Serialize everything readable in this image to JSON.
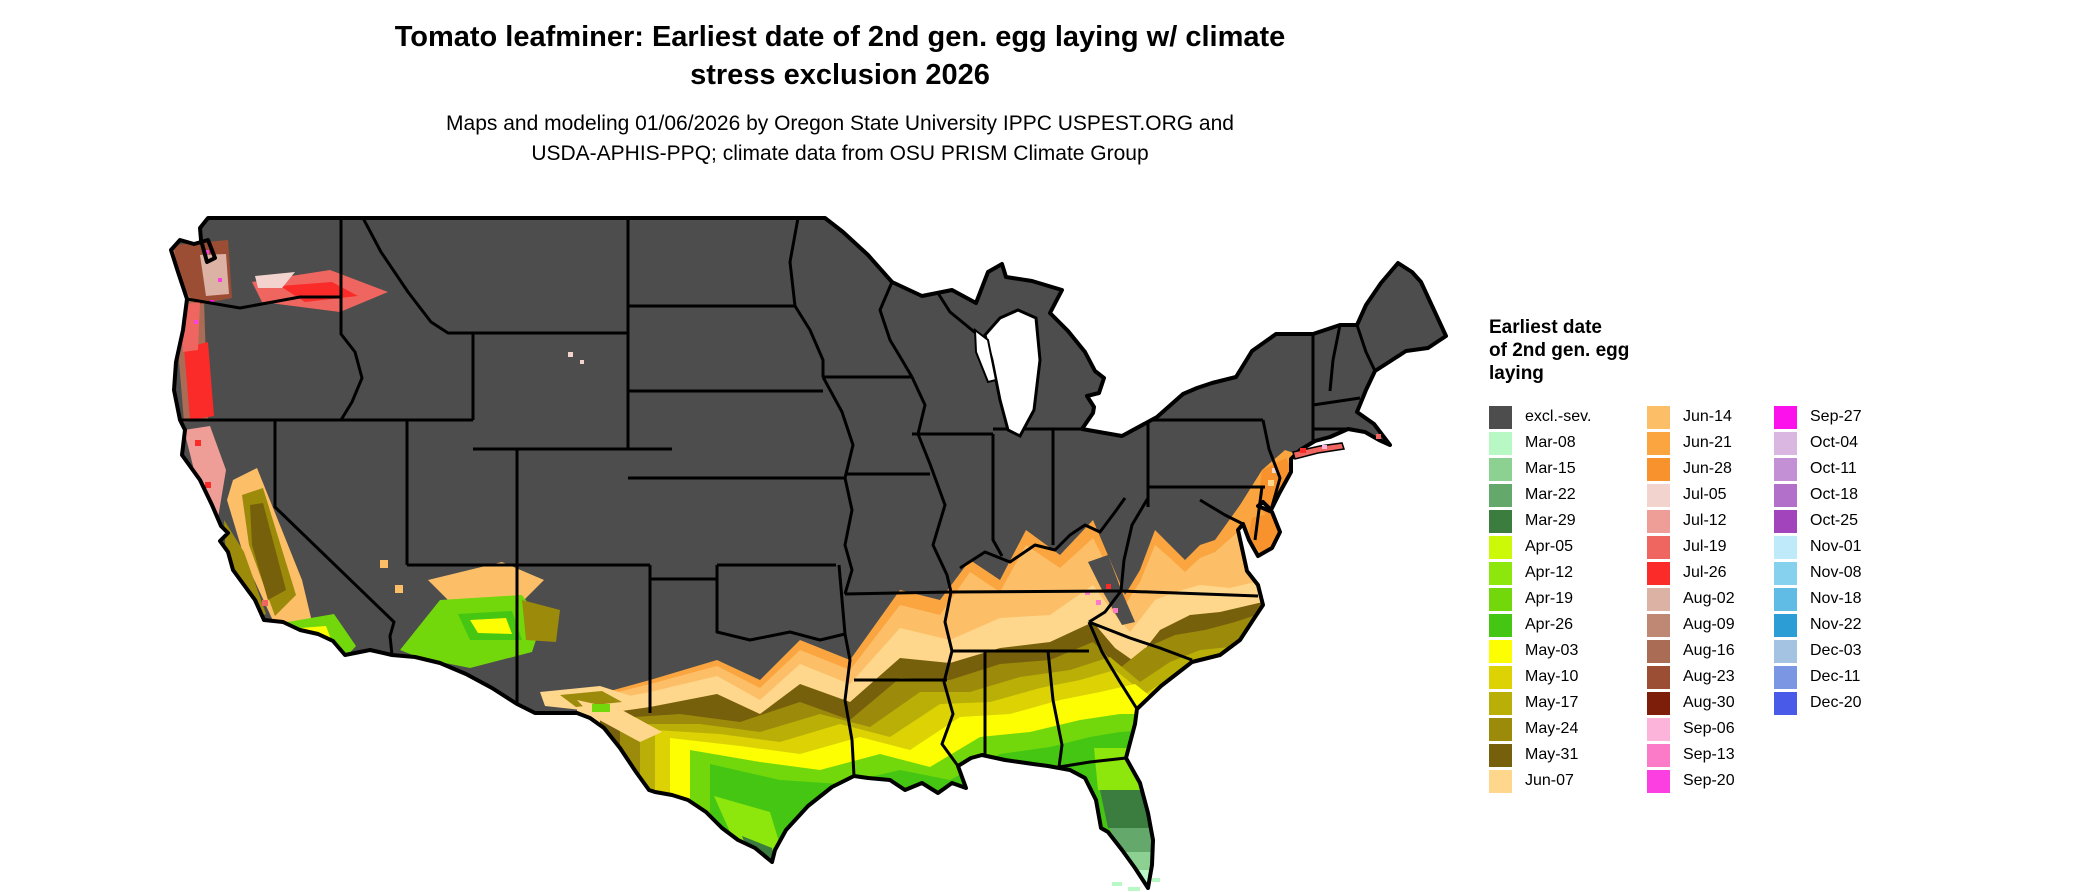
{
  "header": {
    "title_line1": "Tomato leafminer: Earliest date of 2nd gen. egg laying w/ climate",
    "title_line2": "stress exclusion 2026",
    "subtitle_line1": "Maps and modeling 01/06/2026 by Oregon State University IPPC USPEST.ORG and",
    "subtitle_line2": "USDA-APHIS-PPQ; climate data from OSU PRISM Climate Group"
  },
  "legend": {
    "title_lines": [
      "Earliest date",
      "of 2nd gen. egg",
      "laying"
    ],
    "columns": [
      [
        {
          "label": "excl.-sev.",
          "color": "#4D4D4D"
        },
        {
          "label": "Mar-08",
          "color": "#B7F8C5"
        },
        {
          "label": "Mar-15",
          "color": "#8CD092"
        },
        {
          "label": "Mar-22",
          "color": "#64A96B"
        },
        {
          "label": "Mar-29",
          "color": "#3B7D3F"
        },
        {
          "label": "Apr-05",
          "color": "#CCF908"
        },
        {
          "label": "Apr-12",
          "color": "#8DE60C"
        },
        {
          "label": "Apr-19",
          "color": "#72D80B"
        },
        {
          "label": "Apr-26",
          "color": "#44C613"
        },
        {
          "label": "May-03",
          "color": "#FDFE02"
        },
        {
          "label": "May-10",
          "color": "#DCD204"
        },
        {
          "label": "May-17",
          "color": "#BAAF06"
        },
        {
          "label": "May-24",
          "color": "#9C8A0A"
        },
        {
          "label": "May-31",
          "color": "#77600B"
        },
        {
          "label": "Jun-07",
          "color": "#FED78C"
        }
      ],
      [
        {
          "label": "Jun-14",
          "color": "#FCBF68"
        },
        {
          "label": "Jun-21",
          "color": "#FAA53F"
        },
        {
          "label": "Jun-28",
          "color": "#F8922C"
        },
        {
          "label": "Jul-05",
          "color": "#F2D3CE"
        },
        {
          "label": "Jul-12",
          "color": "#EF9D97"
        },
        {
          "label": "Jul-19",
          "color": "#EF6660"
        },
        {
          "label": "Jul-26",
          "color": "#FA2B29"
        },
        {
          "label": "Aug-02",
          "color": "#DCB2A5"
        },
        {
          "label": "Aug-09",
          "color": "#BE8874"
        },
        {
          "label": "Aug-16",
          "color": "#AB6C56"
        },
        {
          "label": "Aug-23",
          "color": "#9C4E35"
        },
        {
          "label": "Aug-30",
          "color": "#7C1E0A"
        },
        {
          "label": "Sep-06",
          "color": "#FCB4DB"
        },
        {
          "label": "Sep-13",
          "color": "#FC7BC8"
        },
        {
          "label": "Sep-20",
          "color": "#FB3FE0"
        }
      ],
      [
        {
          "label": "Sep-27",
          "color": "#FC10EB"
        },
        {
          "label": "Oct-04",
          "color": "#DAB7E1"
        },
        {
          "label": "Oct-11",
          "color": "#C390D5"
        },
        {
          "label": "Oct-18",
          "color": "#B370CA"
        },
        {
          "label": "Oct-25",
          "color": "#A245BC"
        },
        {
          "label": "Nov-01",
          "color": "#BFEAFA"
        },
        {
          "label": "Nov-08",
          "color": "#85D1EE"
        },
        {
          "label": "Nov-18",
          "color": "#60BCE4"
        },
        {
          "label": "Nov-22",
          "color": "#2C9ED5"
        },
        {
          "label": "Dec-03",
          "color": "#A4C3E3"
        },
        {
          "label": "Dec-11",
          "color": "#7B96E3"
        },
        {
          "label": "Dec-20",
          "color": "#4A5AE8"
        }
      ]
    ]
  },
  "map": {
    "background": "#FFFFFF",
    "outline_color": "#000000",
    "lakes_color": "#FFFFFF",
    "excluded_region_label": "excl.-sev."
  }
}
